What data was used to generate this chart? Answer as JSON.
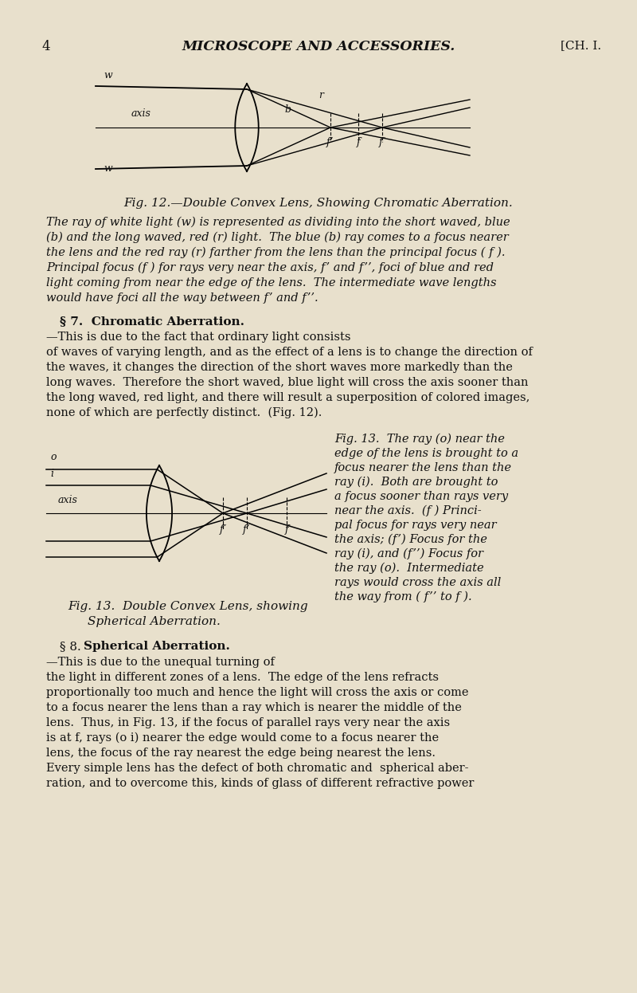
{
  "bg_color": "#e8e0cc",
  "text_color": "#111111",
  "page_number": "4",
  "header_title": "MICROSCOPE AND ACCESSORIES.",
  "header_right": "[CH. I.",
  "fig12_caption": "Fig. 12.—Double Convex Lens, Showing Chromatic Aberration.",
  "para1_line1": "The ray of white light (w) is represented as dividing into the short waved, blue",
  "para1_line2": "(b) and the long waved, red (r) light.  The blue (b) ray comes to a focus nearer",
  "para1_line3": "the lens and the red ray (r) farther from the lens than the principal focus ( f ).",
  "para1_line4": "Principal focus (f ) for rays very near the axis, f’ and f’’, foci of blue and red",
  "para1_line5": "light coming from near the edge of the lens.  The intermediate wave lengths",
  "para1_line6": "would have foci all the way between f’ and f’’.",
  "sec7_head": "§ 7.  Chromatic Aberration.",
  "sec7_body_lines": [
    "—This is due to the fact that ordinary light consists",
    "of waves of varying length, and as the effect of a lens is to change the direction of",
    "the waves, it changes the direction of the short waves more markedly than the",
    "long waves.  Therefore the short waved, blue light will cross the axis sooner than",
    "the long waved, red light, and there will result a superposition of colored images,",
    "none of which are perfectly distinct.  (Fig. 12)."
  ],
  "fig13_right_lines": [
    "Fig. 13.  The ray (o) near the",
    "edge of the lens is brought to a",
    "focus nearer the lens than the",
    "ray (i).  Both are brought to",
    "a focus sooner than rays very",
    "near the axis.  (f ) Princi-",
    "pal focus for rays very near",
    "the axis; (f’) Focus for the",
    "ray (i), and (f’’) Focus for",
    "the ray (o).  Intermediate",
    "rays would cross the axis all",
    "the way from ( f’’ to f )."
  ],
  "fig13_caption_left": "Fig. 13.  Double Convex Lens, showing\n         Spherical Aberration.",
  "sec8_head": "§ 8.  Spherical Aberration.",
  "sec8_body_lines": [
    "—This is due to the unequal turning of",
    "the light in different zones of a lens.  The edge of the lens refracts",
    "proportionally too much and hence the light will cross the axis or come",
    "to a focus nearer the lens than a ray which is nearer the middle of the",
    "lens.  Thus, in Fig. 13, if the focus of parallel rays very near the axis",
    "is at f, rays (o i) nearer the edge would come to a focus nearer the",
    "lens, the focus of the ray nearest the edge being nearest the lens.",
    "Every simple lens has the defect of both chromatic and  spherical aber-",
    "ration, and to overcome this, kinds of glass of different refractive power"
  ]
}
